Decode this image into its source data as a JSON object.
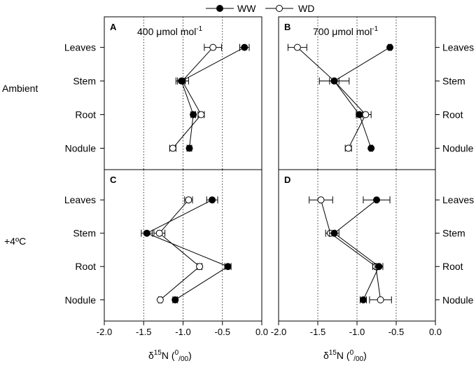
{
  "legend": {
    "ww": "WW",
    "wd": "WD"
  },
  "row_labels": [
    "Ambient",
    "+4ºC"
  ],
  "conc_labels": {
    "A": "400 μmol mol",
    "A_sup": "-1",
    "B": "700 μmol mol",
    "B_sup": "-1"
  },
  "xlabel": {
    "delta": "δ",
    "sup15": "15",
    "n": "N (",
    "sup0": "0",
    "sub00": "00",
    "close": ")"
  },
  "colors": {
    "ww_fill": "#000000",
    "wd_fill": "#ffffff",
    "line": "#000000",
    "gridline": "#000000"
  },
  "chart_data": [
    {
      "type": "scatter",
      "panel": "A",
      "categories": [
        "Leaves",
        "Stem",
        "Root",
        "Nodule"
      ],
      "xlim": [
        -2.0,
        0.0
      ],
      "xticks": [
        "-2.0",
        "-1.5",
        "-1.0",
        "-0.5",
        "0.0"
      ],
      "reference_lines": [
        -1.5,
        -1.0,
        -0.5
      ],
      "series": [
        {
          "name": "WW",
          "values": [
            -0.22,
            -1.02,
            -0.87,
            -0.92
          ],
          "errors": [
            0.06,
            0.05,
            0.03,
            0.03
          ]
        },
        {
          "name": "WD",
          "values": [
            -0.62,
            -1.01,
            -0.77,
            -1.13
          ],
          "errors": [
            0.11,
            0.08,
            0.04,
            0.04
          ]
        }
      ]
    },
    {
      "type": "scatter",
      "panel": "B",
      "categories": [
        "Leaves",
        "Stem",
        "Root",
        "Nodule"
      ],
      "xlim": [
        -2.0,
        0.0
      ],
      "xticks": [
        "-2.0",
        "-1.5",
        "-1.0",
        "-0.5",
        "0.0"
      ],
      "reference_lines": [
        -1.5,
        -1.0,
        -0.5
      ],
      "series": [
        {
          "name": "WW",
          "values": [
            -0.58,
            -1.29,
            -0.97,
            -0.82
          ],
          "errors": [
            0.02,
            0.19,
            0.04,
            0.02
          ]
        },
        {
          "name": "WD",
          "values": [
            -1.76,
            -1.29,
            -0.89,
            -1.11
          ],
          "errors": [
            0.12,
            0.06,
            0.07,
            0.04
          ]
        }
      ]
    },
    {
      "type": "scatter",
      "panel": "C",
      "categories": [
        "Leaves",
        "Stem",
        "Root",
        "Nodule"
      ],
      "xlim": [
        -2.0,
        0.0
      ],
      "xticks": [
        "-2.0",
        "-1.5",
        "-1.0",
        "-0.5",
        "0.0"
      ],
      "reference_lines": [
        -1.5,
        -1.0,
        -0.5
      ],
      "series": [
        {
          "name": "WW",
          "values": [
            -0.63,
            -1.46,
            -0.43,
            -1.1
          ],
          "errors": [
            0.07,
            0.07,
            0.04,
            0.03
          ]
        },
        {
          "name": "WD",
          "values": [
            -0.93,
            -1.3,
            -0.79,
            -1.29
          ],
          "errors": [
            0.05,
            0.07,
            0.03,
            0.02
          ]
        }
      ]
    },
    {
      "type": "scatter",
      "panel": "D",
      "categories": [
        "Leaves",
        "Stem",
        "Root",
        "Nodule"
      ],
      "xlim": [
        -2.0,
        0.0
      ],
      "xticks": [
        "-2.0",
        "-1.5",
        "-1.0",
        "-0.5",
        "0.0"
      ],
      "reference_lines": [
        -1.5,
        -1.0,
        -0.5
      ],
      "series": [
        {
          "name": "WW",
          "values": [
            -0.75,
            -1.29,
            -0.72,
            -0.92
          ],
          "errors": [
            0.17,
            0.06,
            0.05,
            0.04
          ]
        },
        {
          "name": "WD",
          "values": [
            -1.46,
            -1.34,
            -0.76,
            -0.7
          ],
          "errors": [
            0.15,
            0.06,
            0.04,
            0.14
          ]
        }
      ]
    }
  ]
}
